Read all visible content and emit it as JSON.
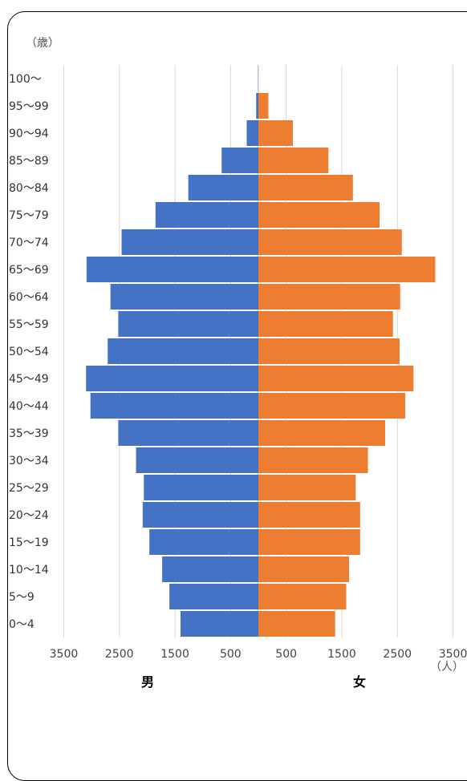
{
  "chart_data": {
    "type": "bar",
    "title": "",
    "y_unit_label": "（歳）",
    "x_unit_label": "（人）",
    "left_label": "男",
    "right_label": "女",
    "x_tick_labels": [
      "3500",
      "2500",
      "1500",
      "500",
      "500",
      "1500",
      "2500",
      "3500"
    ],
    "xlim": [
      -3500,
      3500
    ],
    "grid": true,
    "categories": [
      "0～4",
      "5～9",
      "10～14",
      "15～19",
      "20～24",
      "25～29",
      "30～34",
      "35～39",
      "40～44",
      "45～49",
      "50～54",
      "55～59",
      "60～64",
      "65～69",
      "70～74",
      "75～79",
      "80～84",
      "85～89",
      "90～94",
      "95～99",
      "100～"
    ],
    "series": [
      {
        "name": "男",
        "color": "#4472C4",
        "values": [
          1400,
          1600,
          1730,
          1960,
          2080,
          2060,
          2200,
          2520,
          3020,
          3100,
          2710,
          2520,
          2660,
          3090,
          2460,
          1850,
          1260,
          660,
          210,
          40,
          5
        ]
      },
      {
        "name": "女",
        "color": "#ED7D31",
        "values": [
          1380,
          1580,
          1630,
          1830,
          1830,
          1750,
          1970,
          2280,
          2640,
          2790,
          2540,
          2420,
          2550,
          3180,
          2580,
          2180,
          1700,
          1260,
          620,
          180,
          0
        ]
      }
    ]
  }
}
